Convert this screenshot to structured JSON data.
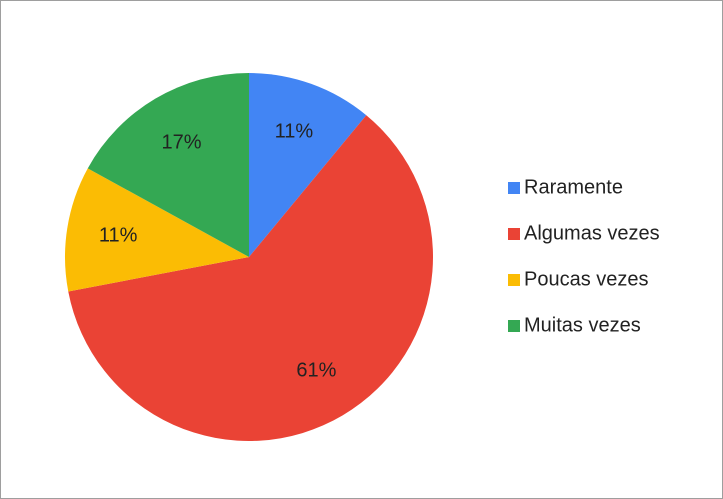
{
  "chart_data": {
    "type": "pie",
    "categories": [
      "Raramente",
      "Algumas vezes",
      "Poucas vezes",
      "Muitas vezes"
    ],
    "values": [
      11,
      61,
      11,
      17
    ],
    "value_labels": [
      "11%",
      "61%",
      "11%",
      "17%"
    ],
    "colors": [
      "#4285f4",
      "#ea4335",
      "#fbbc04",
      "#34a853"
    ],
    "legend": "right"
  }
}
